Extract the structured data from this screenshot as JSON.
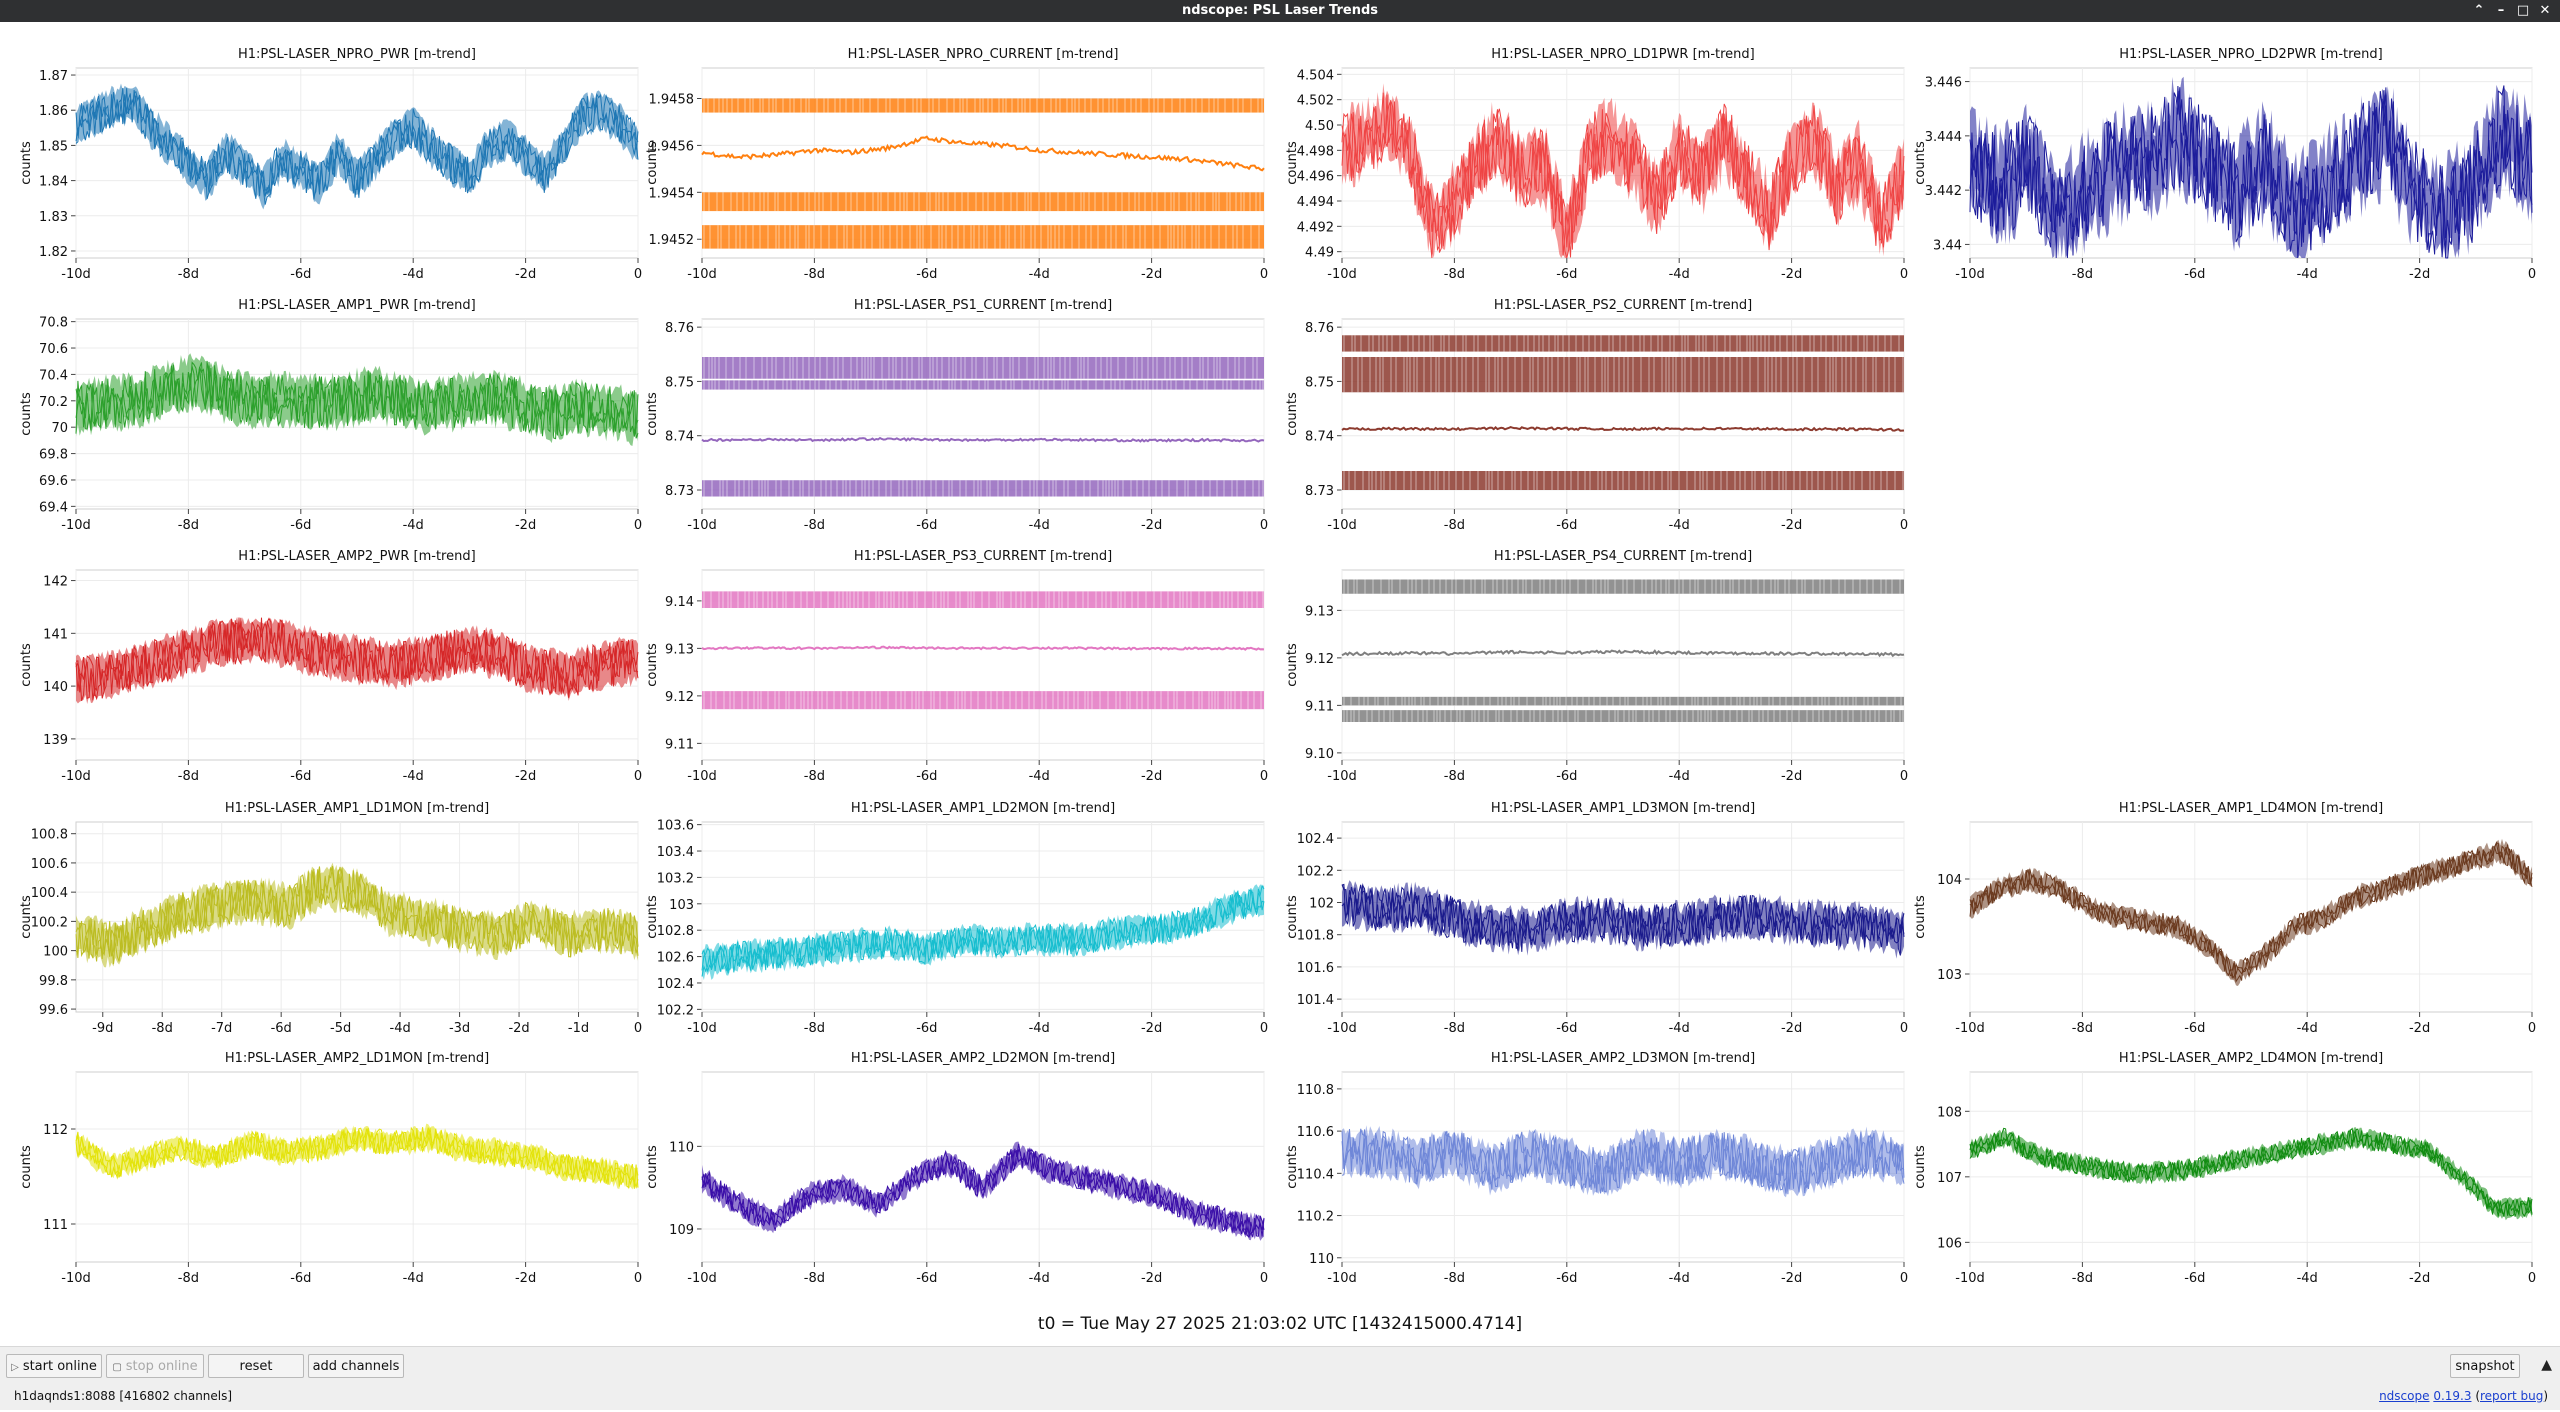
{
  "window": {
    "title": "ndscope: PSL Laser Trends",
    "controls": [
      "⌃",
      "–",
      "□",
      "✕"
    ]
  },
  "plot_common": {
    "ylabel": "counts"
  },
  "chart_data": [
    {
      "type": "line",
      "title": "H1:PSL-LASER_NPRO_PWR [m-trend]",
      "color": "#1f77b4",
      "style": "band",
      "x_ticks": [
        "-10d",
        "-8d",
        "-6d",
        "-4d",
        "-2d",
        "0"
      ],
      "y_ticks": [
        "1.82",
        "1.83",
        "1.84",
        "1.85",
        "1.86",
        "1.87"
      ],
      "ylim": [
        1.818,
        1.872
      ],
      "series": [
        {
          "values": [
            1.856,
            1.858,
            1.861,
            1.862,
            1.855,
            1.85,
            1.845,
            1.84,
            1.848,
            1.844,
            1.838,
            1.846,
            1.843,
            1.839,
            1.848,
            1.84,
            1.846,
            1.852,
            1.855,
            1.849,
            1.845,
            1.841,
            1.849,
            1.852,
            1.847,
            1.842,
            1.85,
            1.858,
            1.86,
            1.856,
            1.85
          ],
          "spread": 0.006,
          "noise": 0.0035
        }
      ]
    },
    {
      "type": "line",
      "title": "H1:PSL-LASER_NPRO_CURRENT [m-trend]",
      "color": "#ff7f0e",
      "style": "mixed",
      "x_ticks": [
        "-10d",
        "-8d",
        "-6d",
        "-4d",
        "-2d",
        "0"
      ],
      "y_ticks": [
        "1.9452",
        "1.9454",
        "1.9456",
        "1.9458"
      ],
      "ylim": [
        1.94512,
        1.94593
      ],
      "series": [
        {
          "values": [
            1.94557,
            1.94555,
            1.94556,
            1.94558,
            1.94557,
            1.94559,
            1.94563,
            1.94561,
            1.9456,
            1.94558,
            1.94557,
            1.94556,
            1.94555,
            1.94554,
            1.94552,
            1.9455
          ],
          "noise": 1e-05
        }
      ],
      "bands": [
        [
          1.94574,
          1.9458
        ],
        [
          1.94532,
          1.9454
        ],
        [
          1.94516,
          1.94526
        ]
      ]
    },
    {
      "type": "line",
      "title": "H1:PSL-LASER_NPRO_LD1PWR [m-trend]",
      "color": "#ef4444",
      "style": "band",
      "x_ticks": [
        "-10d",
        "-8d",
        "-6d",
        "-4d",
        "-2d",
        "0"
      ],
      "y_ticks": [
        "4.49",
        "4.492",
        "4.494",
        "4.496",
        "4.498",
        "4.50",
        "4.502",
        "4.504"
      ],
      "ylim": [
        4.4895,
        4.5045
      ],
      "series": [
        {
          "values": [
            4.498,
            4.499,
            4.5,
            4.498,
            4.492,
            4.494,
            4.497,
            4.499,
            4.496,
            4.497,
            4.491,
            4.498,
            4.499,
            4.497,
            4.494,
            4.498,
            4.496,
            4.499,
            4.496,
            4.493,
            4.497,
            4.499,
            4.495,
            4.497,
            4.492,
            4.496
          ],
          "spread": 0.002,
          "noise": 0.0025
        }
      ]
    },
    {
      "type": "line",
      "title": "H1:PSL-LASER_NPRO_LD2PWR [m-trend]",
      "color": "#1c1c9b",
      "style": "band",
      "x_ticks": [
        "-10d",
        "-8d",
        "-6d",
        "-4d",
        "-2d",
        "0"
      ],
      "y_ticks": [
        "3.44",
        "3.442",
        "3.444",
        "3.446"
      ],
      "ylim": [
        3.4395,
        3.4465
      ],
      "series": [
        {
          "values": [
            3.443,
            3.442,
            3.443,
            3.441,
            3.442,
            3.443,
            3.443,
            3.444,
            3.443,
            3.442,
            3.443,
            3.441,
            3.442,
            3.443,
            3.444,
            3.442,
            3.441,
            3.442,
            3.444,
            3.443
          ],
          "spread": 0.001,
          "noise": 0.0019
        }
      ]
    },
    {
      "type": "line",
      "title": "H1:PSL-LASER_AMP1_PWR [m-trend]",
      "color": "#2ca02c",
      "style": "band",
      "x_ticks": [
        "-10d",
        "-8d",
        "-6d",
        "-4d",
        "-2d",
        "0"
      ],
      "y_ticks": [
        "69.4",
        "69.6",
        "69.8",
        "70",
        "70.2",
        "70.4",
        "70.6",
        "70.8"
      ],
      "ylim": [
        69.38,
        70.82
      ],
      "series": [
        {
          "values": [
            70.15,
            70.18,
            70.2,
            70.28,
            70.35,
            70.25,
            70.2,
            70.22,
            70.18,
            70.2,
            70.25,
            70.2,
            70.15,
            70.2,
            70.22,
            70.18,
            70.1,
            70.15,
            70.12,
            70.08
          ],
          "spread": 0.22,
          "noise": 0.12
        }
      ]
    },
    {
      "type": "line",
      "title": "H1:PSL-LASER_PS1_CURRENT [m-trend]",
      "color": "#9467bd",
      "style": "mixed",
      "x_ticks": [
        "-10d",
        "-8d",
        "-6d",
        "-4d",
        "-2d",
        "0"
      ],
      "y_ticks": [
        "8.73",
        "8.74",
        "8.75",
        "8.76"
      ],
      "ylim": [
        8.7265,
        8.7615
      ],
      "series": [
        {
          "values": [
            8.7392,
            8.7393,
            8.7392,
            8.7394,
            8.7393,
            8.7392,
            8.7393,
            8.7392,
            8.7391,
            8.7392,
            8.7391
          ],
          "noise": 0.0002
        }
      ],
      "bands": [
        [
          8.7505,
          8.7545
        ],
        [
          8.7485,
          8.7502
        ],
        [
          8.7288,
          8.7318
        ]
      ]
    },
    {
      "type": "line",
      "title": "H1:PSL-LASER_PS2_CURRENT [m-trend]",
      "color": "#8c3a2e",
      "style": "mixed",
      "x_ticks": [
        "-10d",
        "-8d",
        "-6d",
        "-4d",
        "-2d",
        "0"
      ],
      "y_ticks": [
        "8.73",
        "8.74",
        "8.75",
        "8.76"
      ],
      "ylim": [
        8.7265,
        8.7615
      ],
      "series": [
        {
          "values": [
            8.7412,
            8.7413,
            8.7412,
            8.7414,
            8.7413,
            8.7412,
            8.7413,
            8.7413,
            8.7412,
            8.7412,
            8.7411
          ],
          "noise": 0.0002
        }
      ],
      "bands": [
        [
          8.7555,
          8.7585
        ],
        [
          8.748,
          8.7545
        ],
        [
          8.73,
          8.7335
        ]
      ]
    },
    {
      "type": "line",
      "title": "H1:PSL-LASER_AMP2_PWR [m-trend]",
      "color": "#d62728",
      "style": "band",
      "x_ticks": [
        "-10d",
        "-8d",
        "-6d",
        "-4d",
        "-2d",
        "0"
      ],
      "y_ticks": [
        "139",
        "140",
        "141",
        "142"
      ],
      "ylim": [
        138.6,
        142.2
      ],
      "series": [
        {
          "values": [
            140.1,
            140.2,
            140.4,
            140.6,
            140.8,
            140.9,
            140.8,
            140.6,
            140.5,
            140.4,
            140.5,
            140.7,
            140.6,
            140.3,
            140.2,
            140.4,
            140.5
          ],
          "spread": 0.55,
          "noise": 0.22
        }
      ]
    },
    {
      "type": "line",
      "title": "H1:PSL-LASER_PS3_CURRENT [m-trend]",
      "color": "#e377c2",
      "style": "mixed",
      "x_ticks": [
        "-10d",
        "-8d",
        "-6d",
        "-4d",
        "-2d",
        "0"
      ],
      "y_ticks": [
        "9.11",
        "9.12",
        "9.13",
        "9.14"
      ],
      "ylim": [
        9.1065,
        9.1465
      ],
      "series": [
        {
          "values": [
            9.13,
            9.1301,
            9.13,
            9.1302,
            9.1301,
            9.13,
            9.1301,
            9.13,
            9.1299,
            9.13,
            9.1299
          ],
          "noise": 0.0002
        }
      ],
      "bands": [
        [
          9.1385,
          9.142
        ],
        [
          9.1172,
          9.121
        ]
      ]
    },
    {
      "type": "line",
      "title": "H1:PSL-LASER_PS4_CURRENT [m-trend]",
      "color": "#7f7f7f",
      "style": "mixed",
      "x_ticks": [
        "-10d",
        "-8d",
        "-6d",
        "-4d",
        "-2d",
        "0"
      ],
      "y_ticks": [
        "9.10",
        "9.11",
        "9.12",
        "9.13"
      ],
      "ylim": [
        9.0985,
        9.1385
      ],
      "series": [
        {
          "values": [
            9.1208,
            9.121,
            9.1209,
            9.1212,
            9.1211,
            9.1213,
            9.1211,
            9.121,
            9.1209,
            9.1208,
            9.1207
          ],
          "noise": 0.0003
        }
      ],
      "bands": [
        [
          9.1335,
          9.1365
        ],
        [
          9.1065,
          9.109
        ],
        [
          9.11,
          9.1118
        ]
      ]
    },
    {
      "type": "line",
      "title": "H1:PSL-LASER_AMP1_LD1MON [m-trend]",
      "color": "#bcbd22",
      "style": "band",
      "x_ticks": [
        "-9d",
        "-8d",
        "-7d",
        "-6d",
        "-5d",
        "-4d",
        "-3d",
        "-2d",
        "-1d",
        "0"
      ],
      "y_ticks": [
        "99.6",
        "99.8",
        "100",
        "100.2",
        "100.4",
        "100.6",
        "100.8"
      ],
      "ylim": [
        99.58,
        100.88
      ],
      "series": [
        {
          "values": [
            100.1,
            100.05,
            100.15,
            100.25,
            100.3,
            100.35,
            100.3,
            100.45,
            100.4,
            100.25,
            100.2,
            100.15,
            100.1,
            100.2,
            100.1,
            100.15,
            100.1
          ],
          "spread": 0.15,
          "noise": 0.1
        }
      ]
    },
    {
      "type": "line",
      "title": "H1:PSL-LASER_AMP1_LD2MON [m-trend]",
      "color": "#17becf",
      "style": "band",
      "x_ticks": [
        "-10d",
        "-8d",
        "-6d",
        "-4d",
        "-2d",
        "0"
      ],
      "y_ticks": [
        "102.2",
        "102.4",
        "102.6",
        "102.8",
        "103",
        "103.2",
        "103.4",
        "103.6"
      ],
      "ylim": [
        102.18,
        103.62
      ],
      "series": [
        {
          "values": [
            102.55,
            102.6,
            102.62,
            102.65,
            102.68,
            102.7,
            102.66,
            102.72,
            102.7,
            102.74,
            102.72,
            102.78,
            102.8,
            102.85,
            102.95,
            103.05
          ],
          "spread": 0.1,
          "noise": 0.09
        }
      ]
    },
    {
      "type": "line",
      "title": "H1:PSL-LASER_AMP1_LD3MON [m-trend]",
      "color": "#1a1a8c",
      "style": "band",
      "x_ticks": [
        "-10d",
        "-8d",
        "-6d",
        "-4d",
        "-2d",
        "0"
      ],
      "y_ticks": [
        "101.4",
        "101.6",
        "101.8",
        "102",
        "102.2",
        "102.4"
      ],
      "ylim": [
        101.32,
        102.5
      ],
      "series": [
        {
          "values": [
            102.0,
            101.95,
            101.98,
            101.9,
            101.85,
            101.82,
            101.88,
            101.9,
            101.85,
            101.86,
            101.9,
            101.92,
            101.88,
            101.86,
            101.85,
            101.8
          ],
          "spread": 0.12,
          "noise": 0.1
        }
      ]
    },
    {
      "type": "line",
      "title": "H1:PSL-LASER_AMP1_LD4MON [m-trend]",
      "color": "#6b3a1f",
      "style": "band",
      "x_ticks": [
        "-10d",
        "-8d",
        "-6d",
        "-4d",
        "-2d",
        "0"
      ],
      "y_ticks": [
        "103",
        "104"
      ],
      "ylim": [
        102.6,
        104.6
      ],
      "series": [
        {
          "values": [
            103.7,
            103.9,
            104.0,
            103.9,
            103.7,
            103.6,
            103.55,
            103.5,
            103.3,
            103.0,
            103.2,
            103.5,
            103.6,
            103.8,
            103.9,
            104.0,
            104.1,
            104.2,
            104.3,
            104.0
          ],
          "spread": 0.1,
          "noise": 0.09
        }
      ]
    },
    {
      "type": "line",
      "title": "H1:PSL-LASER_AMP2_LD1MON [m-trend]",
      "color": "#e3e30b",
      "style": "band",
      "x_ticks": [
        "-10d",
        "-8d",
        "-6d",
        "-4d",
        "-2d",
        "0"
      ],
      "y_ticks": [
        "111",
        "112"
      ],
      "ylim": [
        110.6,
        112.6
      ],
      "series": [
        {
          "values": [
            111.85,
            111.6,
            111.7,
            111.8,
            111.7,
            111.85,
            111.75,
            111.8,
            111.9,
            111.85,
            111.9,
            111.8,
            111.75,
            111.7,
            111.6,
            111.55,
            111.5
          ],
          "spread": 0.12,
          "noise": 0.1
        }
      ]
    },
    {
      "type": "line",
      "title": "H1:PSL-LASER_AMP2_LD2MON [m-trend]",
      "color": "#3a0ea8",
      "style": "band",
      "x_ticks": [
        "-10d",
        "-8d",
        "-6d",
        "-4d",
        "-2d",
        "0"
      ],
      "y_ticks": [
        "109",
        "110"
      ],
      "ylim": [
        108.6,
        110.9
      ],
      "series": [
        {
          "values": [
            109.6,
            109.3,
            109.1,
            109.4,
            109.5,
            109.3,
            109.6,
            109.8,
            109.5,
            109.9,
            109.7,
            109.6,
            109.5,
            109.4,
            109.2,
            109.1,
            109.0
          ],
          "spread": 0.12,
          "noise": 0.12
        }
      ]
    },
    {
      "type": "line",
      "title": "H1:PSL-LASER_AMP2_LD3MON [m-trend]",
      "color": "#6f87d8",
      "style": "band",
      "x_ticks": [
        "-10d",
        "-8d",
        "-6d",
        "-4d",
        "-2d",
        "0"
      ],
      "y_ticks": [
        "110",
        "110.2",
        "110.4",
        "110.6",
        "110.8"
      ],
      "ylim": [
        109.98,
        110.88
      ],
      "series": [
        {
          "values": [
            110.5,
            110.5,
            110.45,
            110.5,
            110.42,
            110.5,
            110.45,
            110.4,
            110.5,
            110.45,
            110.5,
            110.45,
            110.4,
            110.45,
            110.5,
            110.45
          ],
          "spread": 0.12,
          "noise": 0.07
        }
      ]
    },
    {
      "type": "line",
      "title": "H1:PSL-LASER_AMP2_LD4MON [m-trend]",
      "color": "#118c11",
      "style": "band",
      "x_ticks": [
        "-10d",
        "-8d",
        "-6d",
        "-4d",
        "-2d",
        "0"
      ],
      "y_ticks": [
        "106",
        "107",
        "108"
      ],
      "ylim": [
        105.7,
        108.6
      ],
      "series": [
        {
          "values": [
            107.4,
            107.6,
            107.3,
            107.2,
            107.1,
            107.05,
            107.1,
            107.2,
            107.3,
            107.4,
            107.5,
            107.6,
            107.5,
            107.4,
            107.0,
            106.5,
            106.55
          ],
          "spread": 0.12,
          "noise": 0.12
        }
      ]
    }
  ],
  "t0_label": "t0 = Tue May 27 2025 21:03:02 UTC [1432415000.4714]",
  "buttons": {
    "start_online": "start online",
    "stop_online": "stop online",
    "reset": "reset",
    "add_channels": "add channels",
    "snapshot": "snapshot"
  },
  "status": {
    "server": "h1daqnds1:8088  [416802 channels]",
    "app_name": "ndscope",
    "version": "0.19.3",
    "report_bug": "report bug"
  }
}
